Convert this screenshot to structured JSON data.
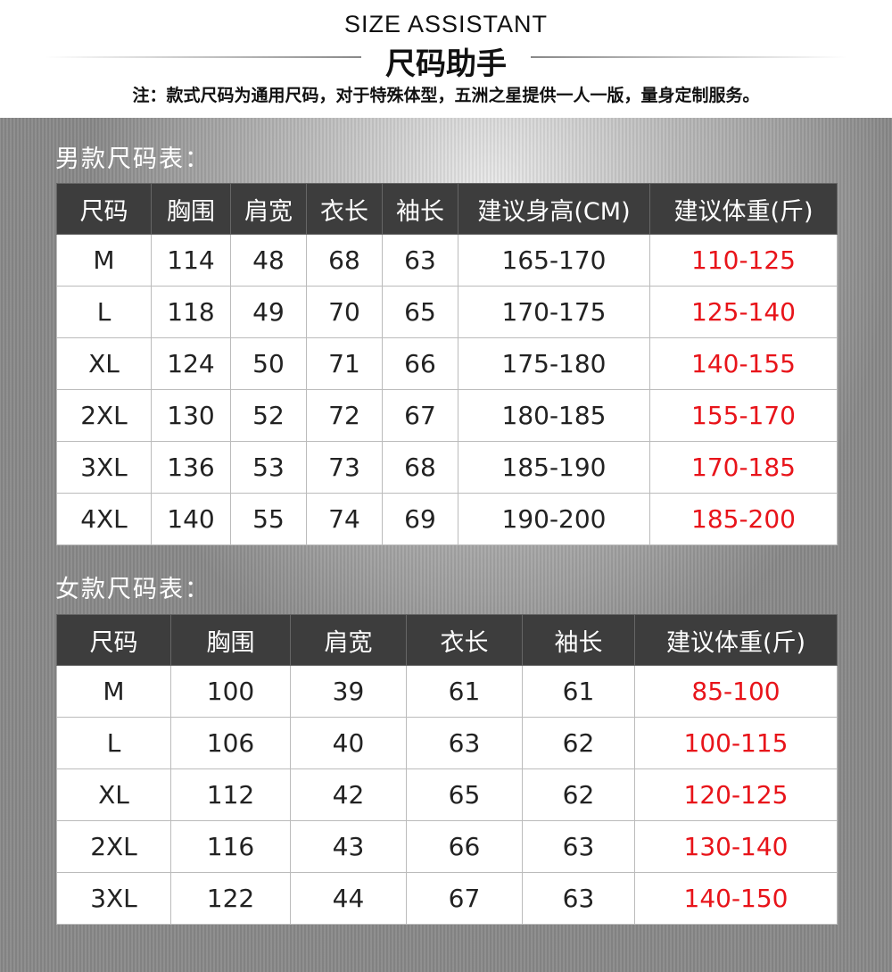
{
  "header": {
    "title_en": "SIZE ASSISTANT",
    "title_cn": "尺码助手",
    "note": "注：款式尺码为通用尺码，对于特殊体型，五洲之星提供一人一版，量身定制服务。"
  },
  "colors": {
    "header_bg": "#3d3d3d",
    "weight_text": "#e8141a"
  },
  "men": {
    "title": "男款尺码表：",
    "columns": [
      "尺码",
      "胸围",
      "肩宽",
      "衣长",
      "袖长",
      "建议身高(CM)",
      "建议体重(斤)"
    ],
    "rows": [
      [
        "M",
        "114",
        "48",
        "68",
        "63",
        "165-170",
        "110-125"
      ],
      [
        "L",
        "118",
        "49",
        "70",
        "65",
        "170-175",
        "125-140"
      ],
      [
        "XL",
        "124",
        "50",
        "71",
        "66",
        "175-180",
        "140-155"
      ],
      [
        "2XL",
        "130",
        "52",
        "72",
        "67",
        "180-185",
        "155-170"
      ],
      [
        "3XL",
        "136",
        "53",
        "73",
        "68",
        "185-190",
        "170-185"
      ],
      [
        "4XL",
        "140",
        "55",
        "74",
        "69",
        "190-200",
        "185-200"
      ]
    ]
  },
  "women": {
    "title": "女款尺码表：",
    "columns": [
      "尺码",
      "胸围",
      "肩宽",
      "衣长",
      "袖长",
      "建议体重(斤)"
    ],
    "rows": [
      [
        "M",
        "100",
        "39",
        "61",
        "61",
        "85-100"
      ],
      [
        "L",
        "106",
        "40",
        "63",
        "62",
        "100-115"
      ],
      [
        "XL",
        "112",
        "42",
        "65",
        "62",
        "120-125"
      ],
      [
        "2XL",
        "116",
        "43",
        "66",
        "63",
        "130-140"
      ],
      [
        "3XL",
        "122",
        "44",
        "67",
        "63",
        "140-150"
      ]
    ]
  }
}
